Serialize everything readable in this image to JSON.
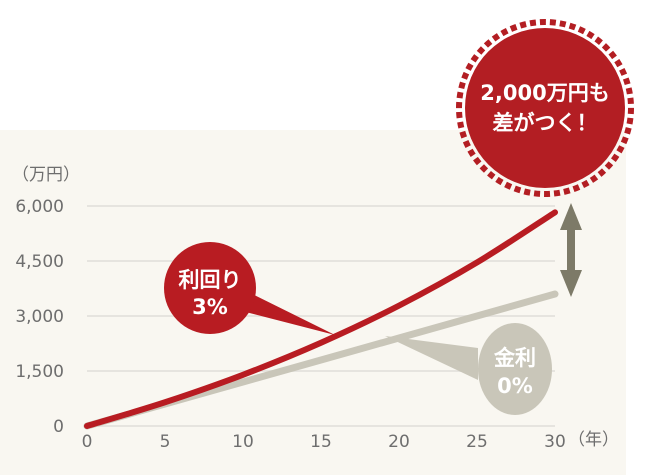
{
  "chart_data": {
    "type": "line",
    "title": "",
    "xlabel": "（年）",
    "ylabel": "（万円）",
    "x": [
      0,
      5,
      10,
      15,
      20,
      25,
      30
    ],
    "xlim": [
      0,
      30
    ],
    "ylim": [
      0,
      6000
    ],
    "yticks": [
      "0",
      "1,500",
      "3,000",
      "4,500",
      "6,000"
    ],
    "xticks": [
      "0",
      "5",
      "10",
      "15",
      "20",
      "25",
      "30"
    ],
    "grid": true,
    "series": [
      {
        "name": "利回り 3%",
        "label_lines": [
          "利回り",
          "3%"
        ],
        "color": "#b81c22",
        "values": [
          0,
          647,
          1397,
          2270,
          3283,
          4460,
          5827
        ]
      },
      {
        "name": "金利 0%",
        "label_lines": [
          "金利",
          "0%"
        ],
        "color": "#c9c6b9",
        "values": [
          0,
          600,
          1200,
          1800,
          2400,
          3000,
          3600
        ]
      }
    ],
    "annotation": {
      "lines": [
        "2,000万円も",
        "差がつく！"
      ],
      "color": "#b31e23",
      "arrow_color": "#7d7a68"
    }
  }
}
